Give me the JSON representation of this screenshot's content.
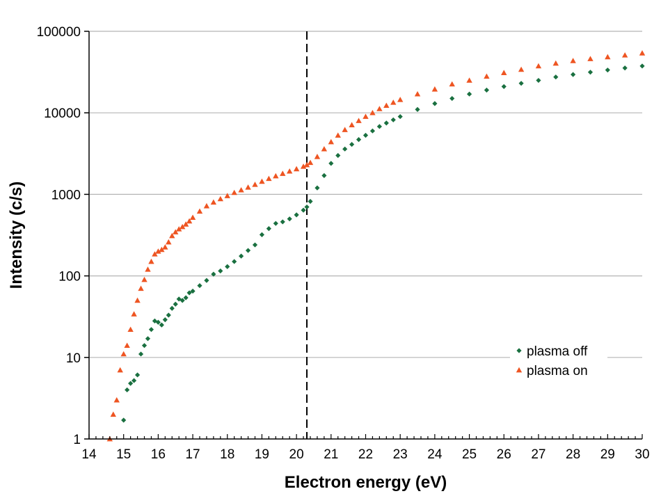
{
  "chart_data": {
    "type": "scatter",
    "title": "",
    "xlabel": "Electron energy (eV)",
    "ylabel": "Intensity (c/s)",
    "xlim": [
      14,
      30
    ],
    "ylim": [
      1,
      100000
    ],
    "y_scale": "log",
    "x_ticks": [
      "14",
      "15",
      "16",
      "17",
      "18",
      "19",
      "20",
      "21",
      "22",
      "23",
      "24",
      "25",
      "26",
      "27",
      "28",
      "29",
      "30"
    ],
    "y_ticks": [
      "1",
      "10",
      "100",
      "1000",
      "10000",
      "100000"
    ],
    "grid": "horizontal gridlines at each decade",
    "legend_position": "bottom-right",
    "reference_line": {
      "x": 20.3,
      "style": "dashed",
      "color": "#000000"
    },
    "series": [
      {
        "name": "plasma off",
        "marker": "diamond",
        "color": "#1a7040",
        "x": [
          15.0,
          15.1,
          15.2,
          15.3,
          15.4,
          15.5,
          15.6,
          15.7,
          15.8,
          15.9,
          16.0,
          16.1,
          16.2,
          16.3,
          16.4,
          16.5,
          16.6,
          16.7,
          16.8,
          16.9,
          17.0,
          17.2,
          17.4,
          17.6,
          17.8,
          18.0,
          18.2,
          18.4,
          18.6,
          18.8,
          19.0,
          19.2,
          19.4,
          19.6,
          19.8,
          20.0,
          20.2,
          20.3,
          20.4,
          20.6,
          20.8,
          21.0,
          21.2,
          21.4,
          21.6,
          21.8,
          22.0,
          22.2,
          22.4,
          22.6,
          22.8,
          23.0,
          23.5,
          24.0,
          24.5,
          25.0,
          25.5,
          26.0,
          26.5,
          27.0,
          27.5,
          28.0,
          28.5,
          29.0,
          29.5,
          30.0
        ],
        "values": [
          1.7,
          4,
          4.8,
          5.2,
          6.1,
          11,
          14,
          17,
          22,
          28,
          27,
          25,
          29,
          33,
          40,
          45,
          52,
          50,
          54,
          62,
          65,
          76,
          88,
          105,
          115,
          130,
          150,
          175,
          205,
          240,
          320,
          380,
          440,
          460,
          500,
          560,
          640,
          700,
          820,
          1200,
          1700,
          2400,
          3000,
          3600,
          4100,
          4700,
          5300,
          6000,
          6800,
          7500,
          8200,
          9000,
          11000,
          13000,
          15000,
          17000,
          19000,
          21000,
          23000,
          25000,
          27500,
          29500,
          31500,
          33500,
          35500,
          37500
        ]
      },
      {
        "name": "plasma on",
        "marker": "triangle",
        "color": "#ee5522",
        "x": [
          14.6,
          14.7,
          14.8,
          14.9,
          15.0,
          15.1,
          15.2,
          15.3,
          15.4,
          15.5,
          15.6,
          15.7,
          15.8,
          15.9,
          16.0,
          16.1,
          16.2,
          16.3,
          16.4,
          16.5,
          16.6,
          16.7,
          16.8,
          16.9,
          17.0,
          17.2,
          17.4,
          17.6,
          17.8,
          18.0,
          18.2,
          18.4,
          18.6,
          18.8,
          19.0,
          19.2,
          19.4,
          19.6,
          19.8,
          20.0,
          20.2,
          20.3,
          20.4,
          20.6,
          20.8,
          21.0,
          21.2,
          21.4,
          21.6,
          21.8,
          22.0,
          22.2,
          22.4,
          22.6,
          22.8,
          23.0,
          23.5,
          24.0,
          24.5,
          25.0,
          25.5,
          26.0,
          26.5,
          27.0,
          27.5,
          28.0,
          28.5,
          29.0,
          29.5,
          30.0
        ],
        "values": [
          1.0,
          2.0,
          3.0,
          7.0,
          11,
          14,
          22,
          34,
          50,
          70,
          90,
          120,
          150,
          185,
          200,
          210,
          225,
          260,
          310,
          345,
          375,
          400,
          430,
          470,
          520,
          620,
          720,
          800,
          880,
          960,
          1050,
          1130,
          1220,
          1320,
          1440,
          1560,
          1680,
          1800,
          1920,
          2050,
          2200,
          2300,
          2450,
          2900,
          3600,
          4400,
          5300,
          6200,
          7100,
          8000,
          9000,
          10000,
          11200,
          12300,
          13400,
          14500,
          17000,
          19500,
          22500,
          25000,
          28000,
          31000,
          34000,
          37500,
          40500,
          43500,
          46000,
          48500,
          51000,
          54000
        ]
      }
    ]
  }
}
